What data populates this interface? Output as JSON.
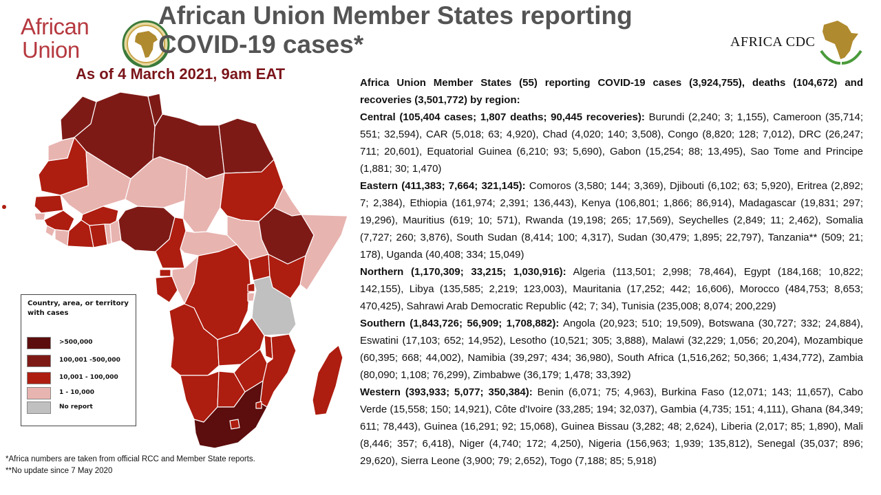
{
  "logos": {
    "au_line1": "African",
    "au_line2": "Union",
    "cdc_text": "AFRICA CDC"
  },
  "title": {
    "line1": "African Union Member States reporting",
    "line2": "COVID-19 cases*"
  },
  "date": "As of 4 March 2021, 9am EAT",
  "legend": {
    "title": "Country, area, or territory with cases",
    "items": [
      {
        "label": ">500,000",
        "color": "#5c0d0d"
      },
      {
        "label": "100,001 -500,000",
        "color": "#7e1a16"
      },
      {
        "label": "10,001 - 100,000",
        "color": "#ad1d10"
      },
      {
        "label": "1 - 10,000",
        "color": "#e8b4b0"
      },
      {
        "label": "No report",
        "color": "#c0c0c0"
      }
    ]
  },
  "footnotes": {
    "note1": "*Africa numbers are taken from official RCC and Member State reports.",
    "note2": "**No update since 7 May 2020"
  },
  "summary": {
    "intro": "Africa Union Member States (55) reporting COVID-19 cases (3,924,755), deaths (104,672) and recoveries (3,501,772) by region:",
    "regions": [
      {
        "heading": "Central (105,404 cases; 1,807 deaths; 90,445 recoveries):",
        "details": "Burundi (2,240; 3; 1,155), Cameroon (35,714; 551; 32,594), CAR (5,018; 63; 4,920), Chad (4,020; 140; 3,508), Congo (8,820; 128; 7,012), DRC (26,247; 711; 20,601), Equatorial Guinea (6,210; 93; 5,690), Gabon (15,254; 88; 13,495), Sao Tome and Principe (1,881; 30; 1,470)"
      },
      {
        "heading": "Eastern (411,383; 7,664; 321,145):",
        "details": "Comoros (3,580; 144; 3,369), Djibouti (6,102; 63; 5,920), Eritrea (2,892; 7; 2,384), Ethiopia (161,974; 2,391; 136,443), Kenya (106,801; 1,866; 86,914), Madagascar (19,831; 297; 19,296), Mauritius (619; 10; 571), Rwanda (19,198; 265; 17,569), Seychelles (2,849; 11; 2,462), Somalia (7,727; 260; 3,876), South Sudan (8,414; 100; 4,317), Sudan (30,479; 1,895; 22,797), Tanzania** (509; 21; 178), Uganda (40,408; 334; 15,049)"
      },
      {
        "heading": "Northern (1,170,309; 33,215; 1,030,916):",
        "details": "Algeria (113,501; 2,998; 78,464), Egypt (184,168; 10,822; 142,155), Libya (135,585; 2,219; 123,003), Mauritania (17,252; 442; 16,606), Morocco (484,753; 8,653; 470,425), Sahrawi Arab Democratic Republic (42; 7; 34), Tunisia (235,008; 8,074; 200,229)"
      },
      {
        "heading": "Southern (1,843,726; 56,909; 1,708,882):",
        "details": "Angola (20,923; 510; 19,509), Botswana (30,727; 332; 24,884), Eswatini (17,103; 652; 14,952), Lesotho (10,521; 305; 3,888), Malawi (32,229; 1,056; 20,204), Mozambique (60,395; 668; 44,002), Namibia (39,297; 434; 36,980), South Africa (1,516,262; 50,366; 1,434,772), Zambia (80,090; 1,108; 76,299), Zimbabwe (36,179; 1,478; 33,392)"
      },
      {
        "heading": "Western (393,933; 5,077; 350,384):",
        "details": "Benin (6,071; 75; 4,963), Burkina Faso (12,071; 143; 11,657), Cabo Verde (15,558; 150; 14,921), Côte d'Ivoire (33,285; 194; 32,037), Gambia (4,735; 151; 4,111), Ghana (84,349; 611; 78,443), Guinea (16,291; 92; 15,068), Guinea Bissau (3,282; 48; 2,624), Liberia (2,017; 85; 1,890), Mali (8,446; 357; 6,418), Niger (4,740; 172; 4,250), Nigeria (156,963; 1,939; 135,812), Senegal (35,037; 896; 29,620), Sierra Leone (3,900; 79; 2,652), Togo (7,188; 85; 5,918)"
      }
    ]
  }
}
